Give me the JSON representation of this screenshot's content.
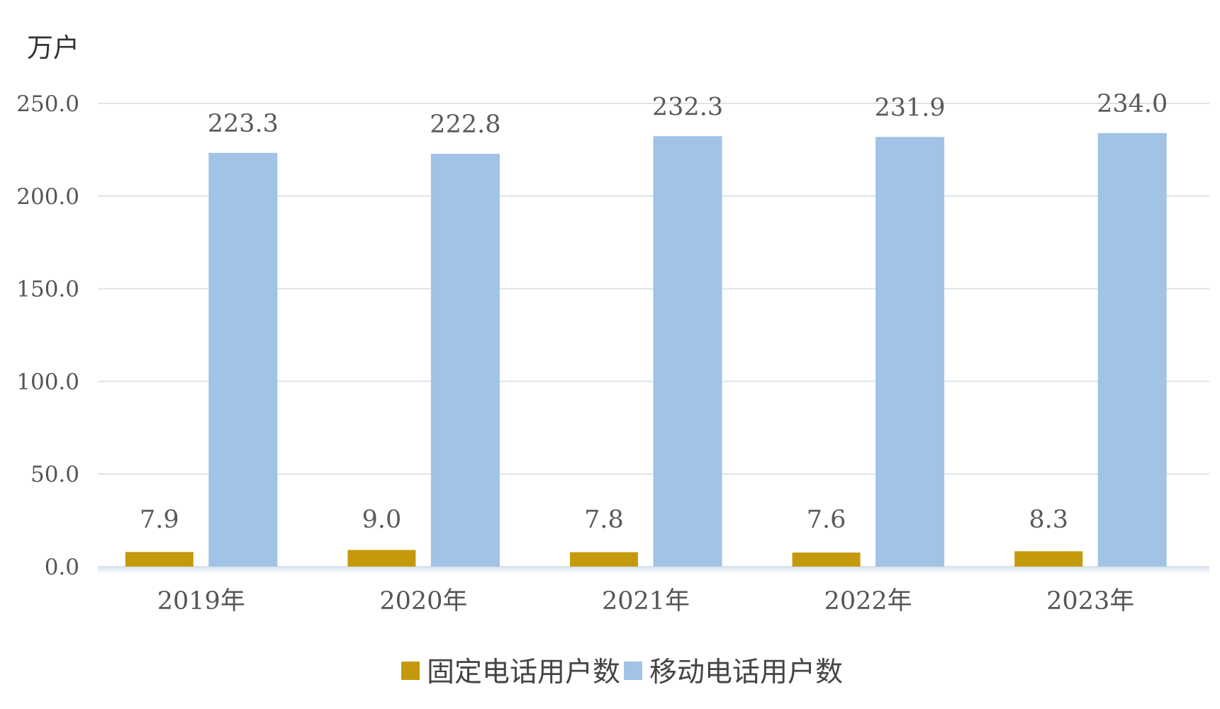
{
  "chart_data": {
    "type": "bar",
    "unit": "万户",
    "categories": [
      "2019年",
      "2020年",
      "2021年",
      "2022年",
      "2023年"
    ],
    "series": [
      {
        "name": "固定电话用户数",
        "color": "#c49a0c",
        "values": [
          7.9,
          9.0,
          7.8,
          7.6,
          8.3
        ],
        "labels": [
          "7.9",
          "9.0",
          "7.8",
          "7.6",
          "8.3"
        ]
      },
      {
        "name": "移动电话用户数",
        "color": "#a0c3e6",
        "values": [
          223.3,
          222.8,
          232.3,
          231.9,
          234.0
        ],
        "labels": [
          "223.3",
          "222.8",
          "232.3",
          "231.9",
          "234.0"
        ]
      }
    ],
    "ylim": [
      0,
      250
    ],
    "yticks": [
      0,
      50,
      100,
      150,
      200,
      250
    ],
    "ytick_labels": [
      "0.0",
      "50.0",
      "100.0",
      "150.0",
      "200.0",
      "250.0"
    ],
    "grid": true,
    "legend_position": "bottom-center"
  }
}
